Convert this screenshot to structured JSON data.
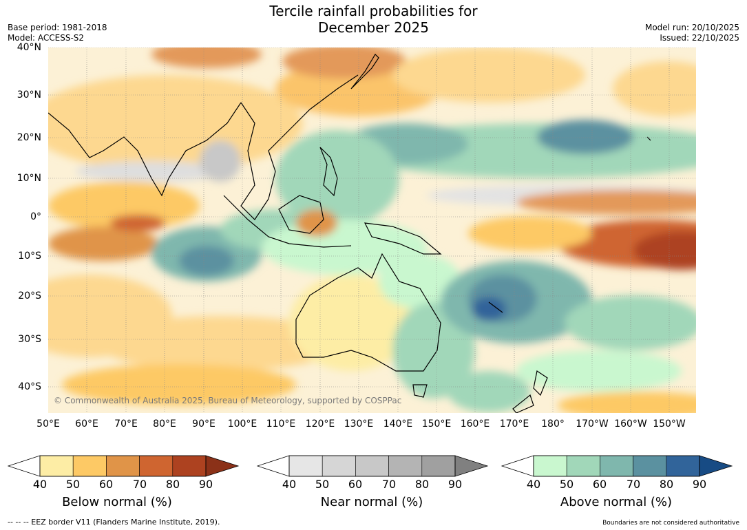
{
  "title_line1": "Tercile rainfall probabilities for",
  "title_line2": "December 2025",
  "base_period": "Base period: 1981-2018",
  "model": "Model: ACCESS-S2",
  "model_run": "Model run: 20/10/2025",
  "issued": "Issued: 22/10/2025",
  "copyright": "© Commonwealth of Australia 2025, Bureau of Meteorology, supported by COSPPac",
  "lat_labels": [
    "40°N",
    "30°N",
    "20°N",
    "10°N",
    "0°",
    "10°S",
    "20°S",
    "30°S",
    "40°S"
  ],
  "lon_labels": [
    "50°E",
    "60°E",
    "70°E",
    "80°E",
    "90°E",
    "100°E",
    "110°E",
    "120°E",
    "130°E",
    "140°E",
    "150°E",
    "160°E",
    "170°E",
    "180°",
    "170°W",
    "160°W",
    "150°W"
  ],
  "colorbars": [
    {
      "title": "Below normal (%)",
      "ticks": [
        "40",
        "50",
        "60",
        "70",
        "80",
        "90"
      ],
      "colors": [
        "#fdeda5",
        "#fdc965",
        "#e09448",
        "#cf6530",
        "#ad4220",
        "#8b3118"
      ]
    },
    {
      "title": "Near normal (%)",
      "ticks": [
        "40",
        "50",
        "60",
        "70",
        "80",
        "90"
      ],
      "colors": [
        "#e6e6e6",
        "#d6d6d6",
        "#c8c8c8",
        "#b4b4b4",
        "#a0a0a0",
        "#808080"
      ]
    },
    {
      "title": "Above normal (%)",
      "ticks": [
        "40",
        "50",
        "60",
        "70",
        "80",
        "90"
      ],
      "colors": [
        "#c9f7cf",
        "#a1d7b9",
        "#7fb7ad",
        "#5b91a0",
        "#31649a",
        "#174b84"
      ]
    }
  ],
  "footer_left": "--  --  -- EEZ border V11 (Flanders Marine Institute, 2019).",
  "footer_right": "Boundaries are not considered authoritative"
}
